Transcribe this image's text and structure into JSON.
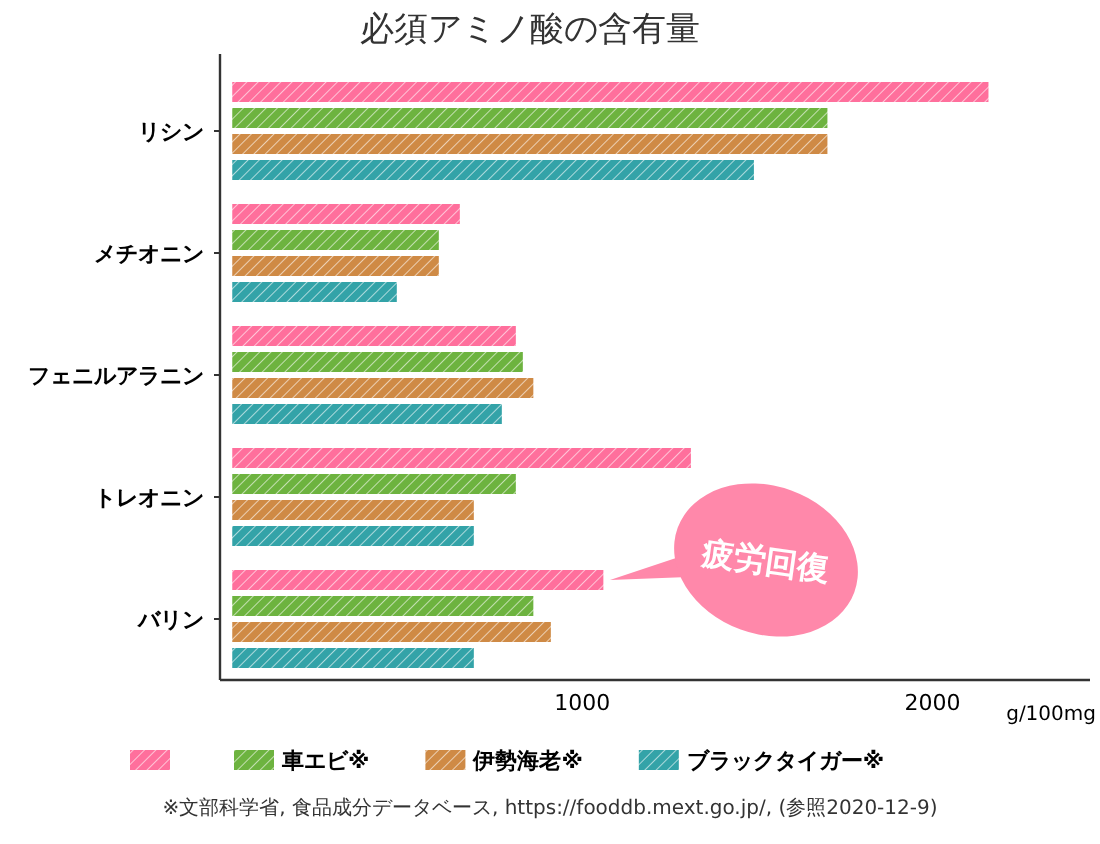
{
  "chart_data": {
    "type": "bar",
    "orientation": "horizontal",
    "title": "必須アミノ酸の含有量",
    "categories": [
      "リシン",
      "メチオニン",
      "フェニルアラニン",
      "トレオニン",
      "バリン"
    ],
    "series": [
      {
        "color": "#ff6f9c",
        "values": [
          2160,
          650,
          810,
          1310,
          1060
        ]
      },
      {
        "name": "車エビ※",
        "color": "#6db33f",
        "values": [
          1700,
          590,
          830,
          810,
          860
        ]
      },
      {
        "name": "伊勢海老※",
        "color": "#cf8a45",
        "values": [
          1700,
          590,
          860,
          690,
          910
        ]
      },
      {
        "name": "ブラックタイガー※",
        "color": "#33a3a8",
        "values": [
          1490,
          470,
          770,
          690,
          690
        ]
      }
    ],
    "xlim": [
      -35,
      2450
    ],
    "xticks": [
      1000,
      2000
    ],
    "xlabel": "g/100mg",
    "grid": false,
    "legend": "bottom",
    "annotations": [
      "疲労回復",
      "※文部科学省, 食品成分データベース, https://fooddb.mext.go.jp/, (参照2020-12-9)"
    ]
  }
}
